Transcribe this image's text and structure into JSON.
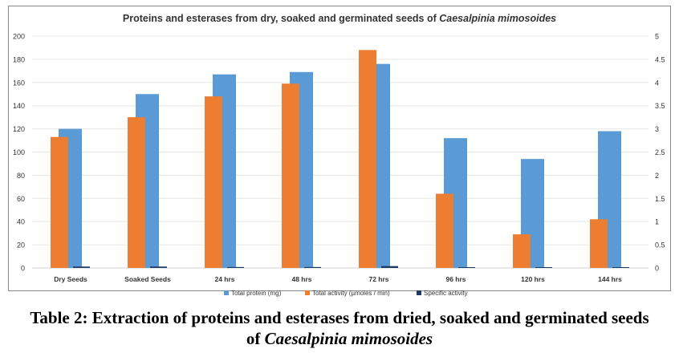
{
  "chart_data": {
    "type": "bar",
    "title_main": "Proteins and esterases from dry, soaked and germinated seeds of ",
    "title_italic": "Caesalpinia mimosoides",
    "categories": [
      "Dry Seeds",
      "Soaked Seeds",
      "24 hrs",
      "48 hrs",
      "72 hrs",
      "96 hrs",
      "120 hrs",
      "144 hrs"
    ],
    "series": [
      {
        "name": "Total activity (µmoles / min)",
        "axis": "left",
        "color": "#ED7D31",
        "values": [
          113,
          130,
          148,
          159,
          188,
          64,
          29,
          42
        ]
      },
      {
        "name": "Total protein (mg)",
        "axis": "left",
        "color": "#5B9BD5",
        "values": [
          120,
          150,
          167,
          169,
          176,
          112,
          94,
          118
        ]
      },
      {
        "name": "Specific activity",
        "axis": "right",
        "color": "#203864",
        "values": [
          0.03,
          0.03,
          0.02,
          0.02,
          0.04,
          0.01,
          0.01,
          0.01
        ]
      }
    ],
    "legend_order": [
      "Total protein (mg)",
      "Total activity (µmoles / min)",
      "Specific activity"
    ],
    "ylim": [
      0,
      200
    ],
    "yticks": [
      "0",
      "20",
      "40",
      "60",
      "80",
      "100",
      "120",
      "140",
      "160",
      "180",
      "200"
    ],
    "y2lim": [
      0,
      5
    ],
    "y2ticks": [
      "0",
      "0.5",
      "1",
      "1.5",
      "2",
      "2.5",
      "3",
      "3.5",
      "4",
      "4.5",
      "5"
    ],
    "grid": true,
    "legend_position": "bottom"
  },
  "caption": {
    "line1": "Table 2: Extraction of proteins and esterases from dried, soaked and germinated seeds",
    "line2_prefix": "of ",
    "line2_italic": "Caesalpinia mimosoides"
  }
}
